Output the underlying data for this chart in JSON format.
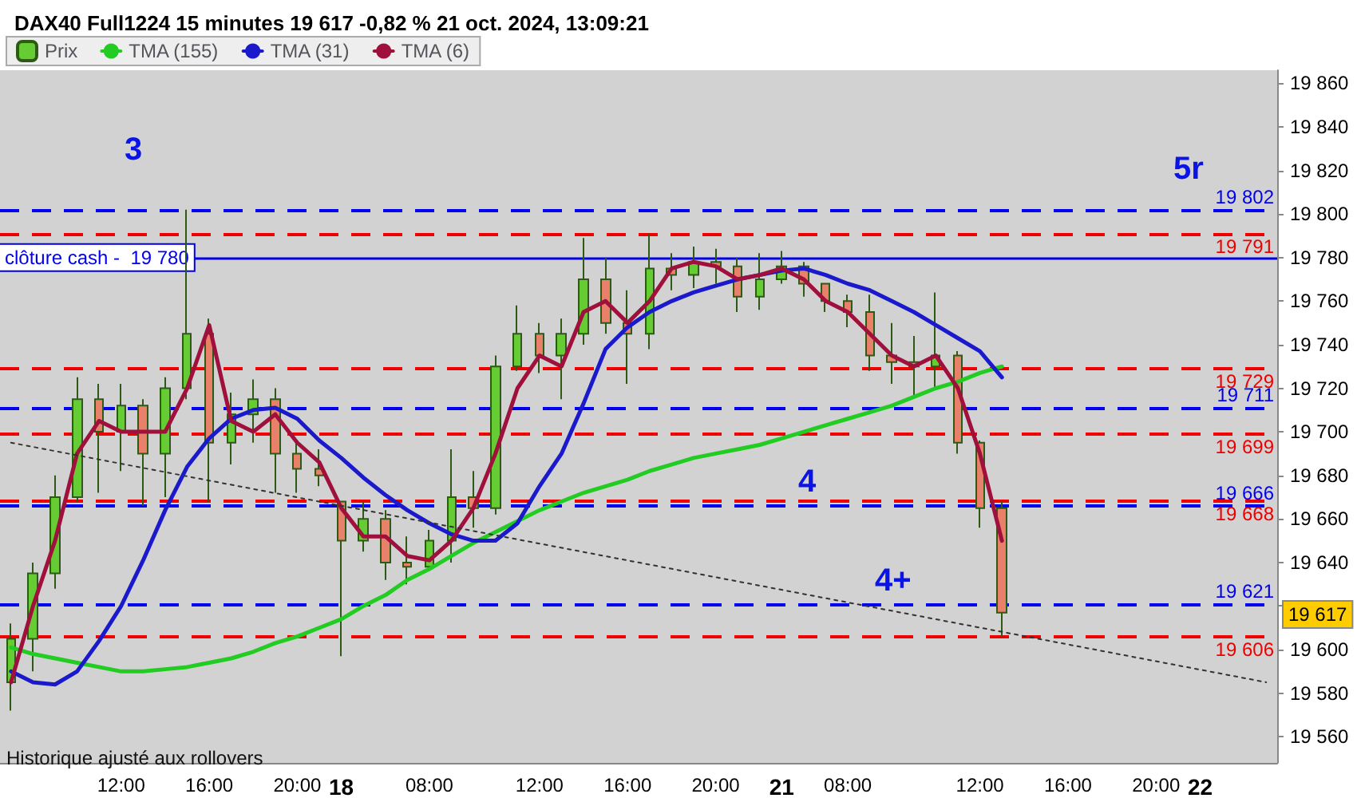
{
  "chart_data": {
    "type": "candlestick",
    "title": "DAX40 Full1224 15 minutes 19 617 -0,82 % 21 oct. 2024, 13:09:21",
    "categories": [
      null,
      null,
      null,
      null,
      null,
      "12:00",
      null,
      null,
      null,
      "16:00",
      null,
      null,
      null,
      "20:00",
      null,
      "18",
      null,
      null,
      null,
      "08:00",
      null,
      null,
      null,
      null,
      "12:00",
      null,
      null,
      null,
      "16:00",
      null,
      null,
      null,
      "20:00",
      null,
      null,
      "21",
      null,
      null,
      "08:00",
      null,
      null,
      null,
      null,
      null,
      "12:00",
      null,
      null,
      null,
      "16:00",
      null,
      null,
      null,
      "20:00",
      null,
      "22",
      null,
      null,
      null
    ],
    "series": [
      {
        "name": "Prix",
        "ohlc": [
          [
            19585,
            19612,
            19572,
            19605
          ],
          [
            19605,
            19640,
            19590,
            19635
          ],
          [
            19635,
            19680,
            19628,
            19670
          ],
          [
            19670,
            19725,
            19668,
            19715
          ],
          [
            19715,
            19722,
            19672,
            19700
          ],
          [
            19700,
            19722,
            19682,
            19712
          ],
          [
            19712,
            19715,
            19666,
            19690
          ],
          [
            19690,
            19725,
            19670,
            19720
          ],
          [
            19720,
            19802,
            19715,
            19745
          ],
          [
            19745,
            19752,
            19668,
            19695
          ],
          [
            19695,
            19718,
            19685,
            19708
          ],
          [
            19708,
            19724,
            19695,
            19715
          ],
          [
            19715,
            19720,
            19672,
            19690
          ],
          [
            19690,
            19695,
            19672,
            19683
          ],
          [
            19683,
            19692,
            19675,
            19680
          ],
          [
            19668,
            19668,
            19597,
            19650
          ],
          [
            19650,
            19668,
            19645,
            19660
          ],
          [
            19660,
            19664,
            19632,
            19640
          ],
          [
            19640,
            19652,
            19630,
            19638
          ],
          [
            19638,
            19655,
            19636,
            19650
          ],
          [
            19650,
            19692,
            19640,
            19670
          ],
          [
            19670,
            19682,
            19656,
            19665
          ],
          [
            19665,
            19735,
            19662,
            19730
          ],
          [
            19730,
            19758,
            19728,
            19745
          ],
          [
            19745,
            19750,
            19727,
            19735
          ],
          [
            19735,
            19752,
            19715,
            19745
          ],
          [
            19745,
            19789,
            19740,
            19770
          ],
          [
            19770,
            19780,
            19745,
            19750
          ],
          [
            19750,
            19765,
            19722,
            19745
          ],
          [
            19745,
            19791,
            19738,
            19775
          ],
          [
            19775,
            19782,
            19765,
            19772
          ],
          [
            19772,
            19785,
            19766,
            19778
          ],
          [
            19778,
            19784,
            19768,
            19776
          ],
          [
            19776,
            19780,
            19755,
            19762
          ],
          [
            19762,
            19782,
            19756,
            19770
          ],
          [
            19770,
            19783,
            19768,
            19776
          ],
          [
            19776,
            19778,
            19762,
            19768
          ],
          [
            19768,
            19768,
            19755,
            19760
          ],
          [
            19760,
            19763,
            19748,
            19755
          ],
          [
            19755,
            19763,
            19728,
            19735
          ],
          [
            19735,
            19750,
            19722,
            19732
          ],
          [
            19732,
            19744,
            19716,
            19730
          ],
          [
            19730,
            19764,
            19720,
            19735
          ],
          [
            19735,
            19737,
            19690,
            19695
          ],
          [
            19695,
            19696,
            19656,
            19665
          ],
          [
            19665,
            19668,
            19606,
            19617
          ],
          null,
          null,
          null,
          null,
          null,
          null,
          null,
          null,
          null,
          null,
          null,
          null
        ],
        "colors": [
          "#66cc33",
          "#66cc33",
          "#66cc33",
          "#66cc33",
          "#e8806a",
          "#66cc33",
          "#e8806a",
          "#66cc33",
          "#66cc33",
          "#e8806a",
          "#66cc33",
          "#66cc33",
          "#e8806a",
          "#e8806a",
          "#e8806a",
          "#e8806a",
          "#66cc33",
          "#e8806a",
          "#e8806a",
          "#66cc33",
          "#66cc33",
          "#e8806a",
          "#66cc33",
          "#66cc33",
          "#e8806a",
          "#66cc33",
          "#66cc33",
          "#e8806a",
          "#e8806a",
          "#66cc33",
          "#e8806a",
          "#66cc33",
          "#e8806a",
          "#e8806a",
          "#66cc33",
          "#66cc33",
          "#e8806a",
          "#e8806a",
          "#e8806a",
          "#e8806a",
          "#e8806a",
          "#e8806a",
          "#66cc33",
          "#e8806a",
          "#e8806a",
          "#e8806a",
          null,
          null,
          null,
          null,
          null,
          null,
          null,
          null,
          null,
          null,
          null,
          null
        ]
      },
      {
        "type": "line",
        "name": "TMA (155)",
        "color": "#22cc22",
        "values": [
          19601,
          19598,
          19596,
          19594,
          19592,
          19590,
          19590,
          19591,
          19592,
          19594,
          19596,
          19599,
          19603,
          19606,
          19610,
          19614,
          19620,
          19625,
          19632,
          19637,
          19643,
          19649,
          19654,
          19659,
          19664,
          19668,
          19672,
          19675,
          19678,
          19682,
          19685,
          19688,
          19690,
          19692,
          19694,
          19697,
          19700,
          19703,
          19706,
          19709,
          19712,
          19716,
          19720,
          19723,
          19727,
          19730,
          null,
          null,
          null,
          null,
          null,
          null,
          null,
          null,
          null,
          null,
          null,
          null
        ]
      },
      {
        "type": "line",
        "name": "TMA (31)",
        "color": "#1a1acc",
        "values": [
          19590,
          19585,
          19584,
          19590,
          19604,
          19620,
          19641,
          19664,
          19684,
          19697,
          19706,
          19710,
          19711,
          19706,
          19696,
          19688,
          19679,
          19671,
          19664,
          19658,
          19653,
          19650,
          19650,
          19658,
          19675,
          19690,
          19713,
          19738,
          19748,
          19755,
          19760,
          19764,
          19767,
          19770,
          19772,
          19774,
          19775,
          19772,
          19768,
          19765,
          19760,
          19755,
          19749,
          19743,
          19737,
          19725,
          null,
          null,
          null,
          null,
          null,
          null,
          null,
          null,
          null,
          null,
          null,
          null
        ]
      },
      {
        "type": "line",
        "name": "TMA (6)",
        "color": "#a0103c",
        "values": [
          19585,
          19620,
          19650,
          19690,
          19705,
          19700,
          19700,
          19700,
          19720,
          19749,
          19705,
          19700,
          19708,
          19695,
          19686,
          19665,
          19652,
          19652,
          19643,
          19641,
          19650,
          19665,
          19690,
          19720,
          19735,
          19730,
          19755,
          19760,
          19750,
          19760,
          19775,
          19778,
          19776,
          19770,
          19772,
          19775,
          19770,
          19760,
          19755,
          19745,
          19735,
          19730,
          19735,
          19720,
          19690,
          19650,
          null,
          null,
          null,
          null,
          null,
          null,
          null,
          null,
          null,
          null,
          null,
          null
        ]
      },
      {
        "type": "line",
        "color": "#333333",
        "line_style": "dotted",
        "values": [
          19695,
          null,
          null,
          null,
          null,
          null,
          null,
          null,
          null,
          null,
          null,
          null,
          null,
          null,
          null,
          null,
          null,
          null,
          null,
          null,
          null,
          null,
          null,
          null,
          null,
          null,
          null,
          null,
          null,
          null,
          null,
          null,
          null,
          null,
          null,
          null,
          null,
          null,
          null,
          null,
          null,
          null,
          null,
          null,
          null,
          null,
          null,
          null,
          null,
          null,
          null,
          null,
          null,
          null,
          null,
          null,
          null,
          19585
        ]
      }
    ],
    "ylim": [
      19548,
      19866
    ],
    "yticks": [
      {
        "value": 19560,
        "label": "19 560"
      },
      {
        "value": 19580,
        "label": "19 580"
      },
      {
        "value": 19600,
        "label": "19 600"
      },
      {
        "value": 19620,
        "label": null
      },
      {
        "value": 19640,
        "label": "19 640"
      },
      {
        "value": 19660,
        "label": "19 660"
      },
      {
        "value": 19680,
        "label": "19 680"
      },
      {
        "value": 19700,
        "label": "19 700"
      },
      {
        "value": 19720,
        "label": "19 720"
      },
      {
        "value": 19740,
        "label": "19 740"
      },
      {
        "value": 19760,
        "label": "19 760"
      },
      {
        "value": 19780,
        "label": "19 780"
      },
      {
        "value": 19800,
        "label": "19 800"
      },
      {
        "value": 19820,
        "label": "19 820"
      },
      {
        "value": 19840,
        "label": "19 840"
      },
      {
        "value": 19860,
        "label": "19 860"
      }
    ],
    "ref_lines": [
      {
        "axis": "y",
        "value": 19780,
        "label": "clôture cash -  19 780",
        "color": "#0000ee",
        "line_style": "solid"
      },
      {
        "axis": "y",
        "value": 19802,
        "label": "19 802",
        "color": "#0000ee",
        "line_style": "dashed"
      },
      {
        "axis": "y",
        "value": 19711,
        "label": "19 711",
        "color": "#0000ee",
        "line_style": "dashed"
      },
      {
        "axis": "y",
        "value": 19666,
        "label": "19 666",
        "color": "#0000ee",
        "line_style": "dashed"
      },
      {
        "axis": "y",
        "value": 19621,
        "label": "19 621",
        "color": "#0000ee",
        "line_style": "dashed"
      },
      {
        "axis": "y",
        "value": 19791,
        "label": "19 791",
        "color": "#ee0000",
        "line_style": "dashed"
      },
      {
        "axis": "y",
        "value": 19729,
        "label": "19 729",
        "color": "#ee0000",
        "line_style": "dashed"
      },
      {
        "axis": "y",
        "value": 19699,
        "label": "19 699",
        "color": "#ee0000",
        "line_style": "dashed"
      },
      {
        "axis": "y",
        "value": 19668,
        "label": "19 668",
        "color": "#ee0000",
        "line_style": "dashed"
      },
      {
        "axis": "y",
        "value": 19606,
        "label": "19 606",
        "color": "#ee0000",
        "line_style": "dashed"
      }
    ],
    "annotations": [
      "3",
      "4",
      "4+",
      "5r",
      "19 617",
      "Historique ajusté aux rollovers"
    ],
    "legend": "top left",
    "grid": false,
    "marker": "none"
  }
}
